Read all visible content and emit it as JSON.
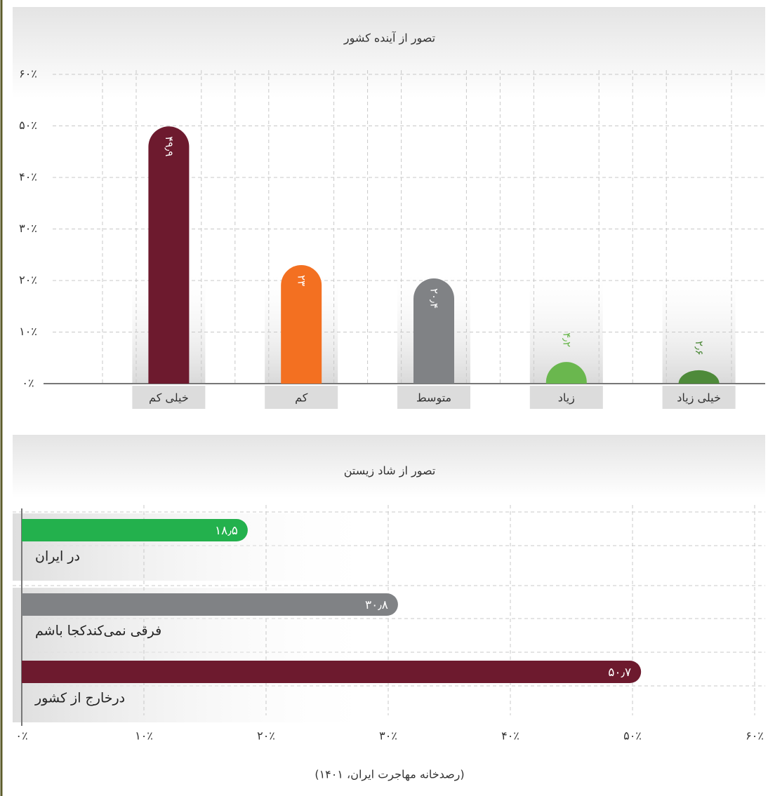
{
  "chart_data": [
    {
      "type": "bar",
      "title": "تصور از آینده کشور",
      "categories": [
        "خیلی کم",
        "کم",
        "متوسط",
        "زیاد",
        "خیلی زیاد"
      ],
      "values": [
        49.9,
        23,
        20.4,
        4.2,
        2.6
      ],
      "value_labels": [
        "۴۹٫۹",
        "۲۳",
        "۲۰٫۴",
        "۴٫۲",
        "۲٫۶"
      ],
      "colors": [
        "#6d1a2e",
        "#f37021",
        "#808285",
        "#6ab74e",
        "#4e8a3a"
      ],
      "ylim": [
        0,
        60
      ],
      "yticks": [
        {
          "value": 0,
          "label": "۰٪"
        },
        {
          "value": 10,
          "label": "۱۰٪"
        },
        {
          "value": 20,
          "label": "۲۰٪"
        },
        {
          "value": 30,
          "label": "۳۰٪"
        },
        {
          "value": 40,
          "label": "۴۰٪"
        },
        {
          "value": 50,
          "label": "۵۰٪"
        },
        {
          "value": 60,
          "label": "۶۰٪"
        }
      ],
      "grid": true
    },
    {
      "type": "hbar",
      "title": "تصور از شاد زیستن",
      "categories": [
        "در ایران",
        "فرقی نمی‌کندکجا باشم",
        "درخارج از کشور"
      ],
      "values": [
        18.5,
        30.8,
        50.7
      ],
      "value_labels": [
        "۱۸٫۵",
        "۳۰٫۸",
        "۵۰٫۷"
      ],
      "colors": [
        "#23b14d",
        "#808285",
        "#6d1a2e"
      ],
      "xlim": [
        0,
        60
      ],
      "xticks": [
        {
          "value": 0,
          "label": "۰٪"
        },
        {
          "value": 10,
          "label": "۱۰٪"
        },
        {
          "value": 20,
          "label": "۲۰٪"
        },
        {
          "value": 30,
          "label": "۳۰٪"
        },
        {
          "value": 40,
          "label": "۴۰٪"
        },
        {
          "value": 50,
          "label": "۵۰٪"
        },
        {
          "value": 60,
          "label": "۶۰٪"
        }
      ],
      "grid": true
    }
  ],
  "source": "(رصدخانه مهاجرت ایران، ۱۴۰۱)"
}
